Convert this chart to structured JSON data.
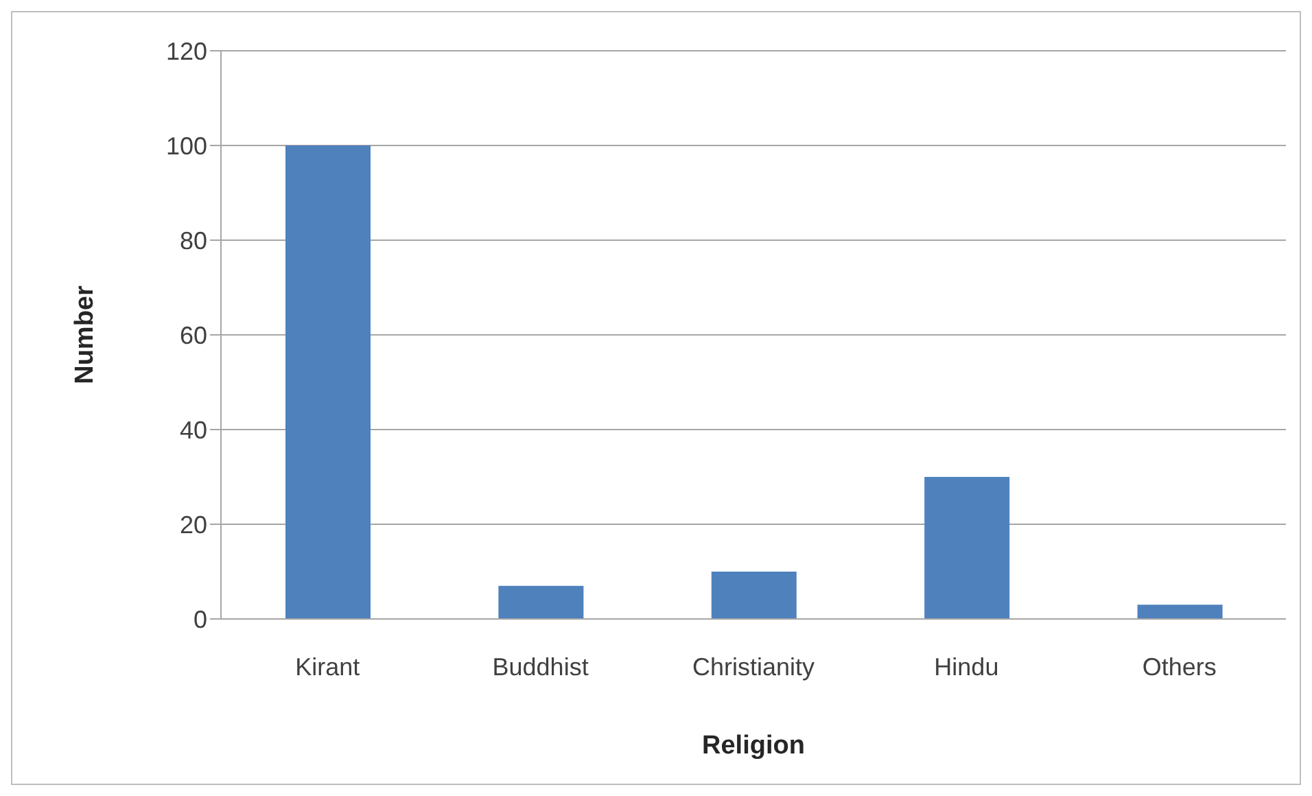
{
  "chart_data": {
    "type": "bar",
    "xlabel": "Religion",
    "ylabel": "Number",
    "categories": [
      "Kirant",
      "Buddhist",
      "Christianity",
      "Hindu",
      "Others"
    ],
    "values": [
      100,
      7,
      10,
      30,
      3
    ],
    "color": "#4f81bd",
    "ylim": [
      0,
      120
    ],
    "yticks": [
      0,
      20,
      40,
      60,
      80,
      100,
      120
    ],
    "grid": "y"
  }
}
